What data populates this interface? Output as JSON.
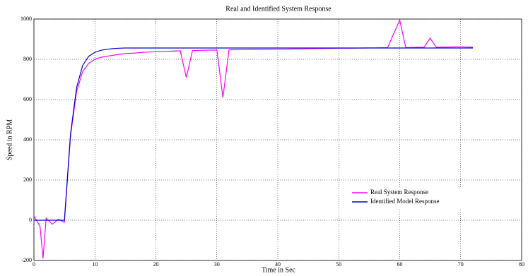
{
  "chart_data": {
    "type": "line",
    "title": "Real and Identified System Response",
    "x_label": "Time in Sec",
    "y_label": "Speed in RPM",
    "x": [
      0,
      1,
      1.5,
      2,
      3,
      4,
      5,
      6,
      7,
      8,
      9,
      10,
      11,
      12,
      13,
      14,
      15,
      16,
      17,
      18,
      19,
      20,
      22,
      24,
      25,
      26,
      28,
      30,
      31,
      32,
      34,
      36,
      38,
      40,
      42,
      44,
      46,
      48,
      50,
      52,
      54,
      56,
      58,
      60,
      61,
      62,
      64,
      65,
      66,
      68,
      70,
      72
    ],
    "series": [
      {
        "name": "Real System Response",
        "color": "#ff00ff",
        "values": [
          20,
          -30,
          -190,
          10,
          -20,
          5,
          -10,
          420,
          640,
          740,
          780,
          800,
          810,
          815,
          820,
          825,
          828,
          830,
          832,
          835,
          836,
          838,
          840,
          842,
          710,
          843,
          845,
          846,
          610,
          847,
          848,
          849,
          850,
          850,
          851,
          852,
          853,
          854,
          855,
          855,
          856,
          857,
          858,
          995,
          858,
          859,
          860,
          905,
          860,
          861,
          862,
          860
        ]
      },
      {
        "name": "Identified Model Response",
        "color": "#0000cc",
        "values": [
          0,
          0,
          0,
          0,
          0,
          0,
          0,
          430,
          660,
          770,
          815,
          835,
          845,
          850,
          853,
          855,
          856,
          856,
          856,
          856,
          856,
          856,
          856,
          856,
          856,
          856,
          856,
          856,
          856,
          856,
          856,
          856,
          856,
          856,
          856,
          856,
          856,
          856,
          856,
          856,
          856,
          856,
          856,
          856,
          856,
          856,
          856,
          856,
          856,
          856,
          856,
          856
        ]
      }
    ],
    "xlim": [
      0,
      80
    ],
    "xticks": [
      0,
      10,
      20,
      30,
      40,
      50,
      60,
      70,
      80
    ],
    "ylim": [
      -200,
      1000
    ],
    "yticks": [
      -200,
      0,
      200,
      400,
      600,
      800,
      1000
    ],
    "grid": true,
    "legend": "center right"
  }
}
